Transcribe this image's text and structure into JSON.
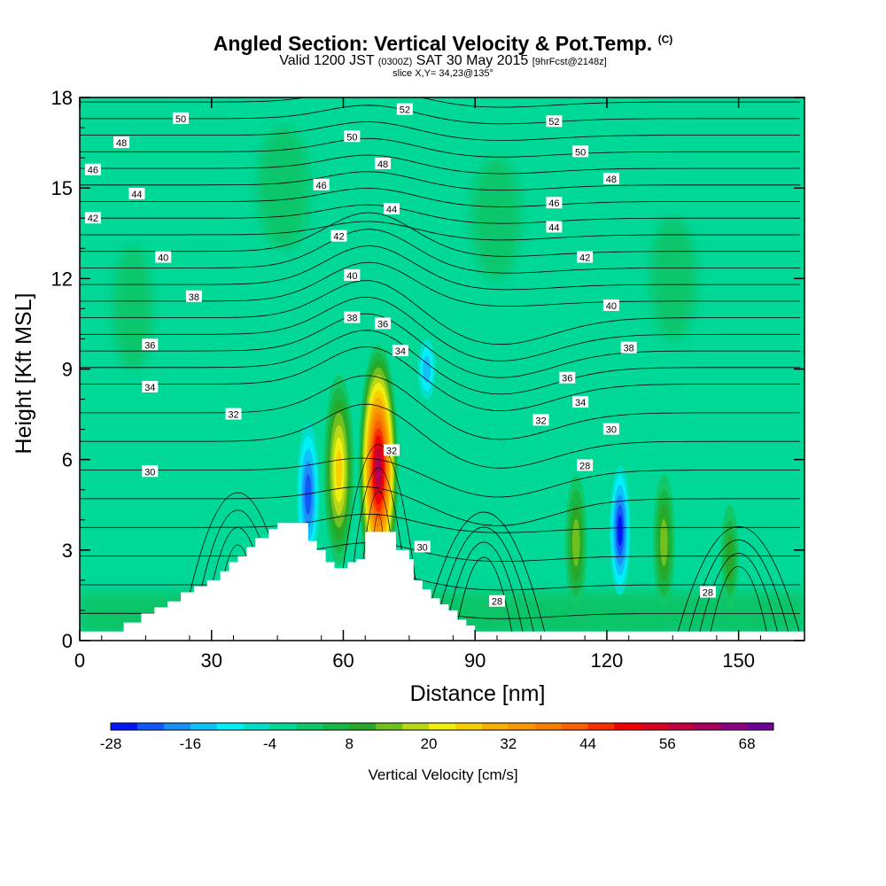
{
  "header": {
    "title": "Angled Section: Vertical Velocity & Pot.Temp.",
    "title_unit": "(C)",
    "subtitle_a": "Valid 1200 JST",
    "subtitle_b": "(0300Z)",
    "subtitle_c": "SAT 30 May 2015",
    "subtitle_d": "[9hrFcst@2148z]",
    "slice": "slice X,Y= 34,23@135°"
  },
  "chart_data": {
    "type": "heatmap",
    "xlabel": "Distance [nm]",
    "ylabel": "Height [Kft MSL]",
    "xlim": [
      0,
      165
    ],
    "ylim": [
      0,
      18
    ],
    "x_ticks": [
      0,
      30,
      60,
      90,
      120,
      150
    ],
    "y_ticks": [
      0,
      3,
      6,
      9,
      12,
      15,
      18
    ],
    "field": "Vertical Velocity",
    "background_value": -4,
    "colorbar": {
      "title": "Vertical Velocity [cm/s]",
      "levels": [
        -28,
        -24,
        -20,
        -16,
        -12,
        -8,
        -4,
        0,
        4,
        8,
        12,
        16,
        20,
        24,
        28,
        32,
        36,
        40,
        44,
        48,
        52,
        56,
        60,
        64,
        68,
        72
      ],
      "tick_values": [
        -28,
        -16,
        -4,
        8,
        20,
        32,
        44,
        56,
        68
      ],
      "colors": [
        "#0018f8",
        "#1058f8",
        "#1890f8",
        "#10c0f8",
        "#00f0f8",
        "#00e0c8",
        "#00d898",
        "#10c868",
        "#18b848",
        "#28a828",
        "#70c020",
        "#b8d818",
        "#f0f010",
        "#f8d000",
        "#f8b000",
        "#f89800",
        "#f88000",
        "#f86000",
        "#f83000",
        "#f00000",
        "#d80020",
        "#c00040",
        "#a80060",
        "#8c0080",
        "#6c0098"
      ]
    },
    "features": [
      {
        "kind": "updraft",
        "x": 68,
        "y_range": [
          1.5,
          9.8
        ],
        "peak": 60
      },
      {
        "kind": "updraft",
        "x": 59,
        "y_range": [
          2.5,
          8.8
        ],
        "peak": 24
      },
      {
        "kind": "downdraft",
        "x": 52,
        "y_range": [
          2.5,
          7.2
        ],
        "peak": -24
      },
      {
        "kind": "downdraft",
        "x": 79,
        "y_range": [
          8.0,
          10.0
        ],
        "peak": -16
      },
      {
        "kind": "downdraft",
        "x": 123,
        "y_range": [
          1.5,
          5.8
        ],
        "peak": -28
      },
      {
        "kind": "updraft",
        "x": 113,
        "y_range": [
          1.0,
          5.5
        ],
        "peak": 12
      },
      {
        "kind": "updraft",
        "x": 133,
        "y_range": [
          1.0,
          5.5
        ],
        "peak": 12
      },
      {
        "kind": "updraft",
        "x": 148,
        "y_range": [
          1.0,
          4.5
        ],
        "peak": 8
      }
    ],
    "terrain": [
      [
        10,
        0.6
      ],
      [
        14,
        0.9
      ],
      [
        17,
        1.1
      ],
      [
        20,
        1.3
      ],
      [
        23,
        1.6
      ],
      [
        26,
        1.8
      ],
      [
        29,
        2.0
      ],
      [
        32,
        2.3
      ],
      [
        34,
        2.6
      ],
      [
        36,
        2.8
      ],
      [
        38,
        3.1
      ],
      [
        40,
        3.4
      ],
      [
        43,
        3.7
      ],
      [
        45,
        3.9
      ],
      [
        51,
        3.9
      ],
      [
        52,
        3.3
      ],
      [
        54,
        3.0
      ],
      [
        56,
        2.6
      ],
      [
        58,
        2.4
      ],
      [
        61,
        2.6
      ],
      [
        63,
        2.7
      ],
      [
        65,
        3.6
      ],
      [
        71,
        3.6
      ],
      [
        72,
        3.0
      ],
      [
        75,
        2.7
      ],
      [
        76,
        2.0
      ],
      [
        78,
        1.7
      ],
      [
        80,
        1.4
      ],
      [
        82,
        1.2
      ],
      [
        84,
        1.0
      ],
      [
        86,
        0.7
      ],
      [
        88,
        0.5
      ],
      [
        90,
        0.3
      ]
    ],
    "theta_contour_labels": [
      {
        "v": 50,
        "x": 23,
        "y": 17.3
      },
      {
        "v": 48,
        "x": 9.5,
        "y": 16.5
      },
      {
        "v": 46,
        "x": 3,
        "y": 15.6
      },
      {
        "v": 44,
        "x": 13,
        "y": 14.8
      },
      {
        "v": 42,
        "x": 3,
        "y": 14.0
      },
      {
        "v": 40,
        "x": 19,
        "y": 12.7
      },
      {
        "v": 38,
        "x": 26,
        "y": 11.4
      },
      {
        "v": 36,
        "x": 16,
        "y": 9.8
      },
      {
        "v": 34,
        "x": 16,
        "y": 8.4
      },
      {
        "v": 32,
        "x": 35,
        "y": 7.5
      },
      {
        "v": 30,
        "x": 16,
        "y": 5.6
      },
      {
        "v": 52,
        "x": 74,
        "y": 17.6
      },
      {
        "v": 50,
        "x": 62,
        "y": 16.7
      },
      {
        "v": 48,
        "x": 69,
        "y": 15.8
      },
      {
        "v": 46,
        "x": 55,
        "y": 15.1
      },
      {
        "v": 44,
        "x": 71,
        "y": 14.3
      },
      {
        "v": 42,
        "x": 59,
        "y": 13.4
      },
      {
        "v": 40,
        "x": 62,
        "y": 12.1
      },
      {
        "v": 38,
        "x": 62,
        "y": 10.7
      },
      {
        "v": 36,
        "x": 69,
        "y": 10.5
      },
      {
        "v": 34,
        "x": 73,
        "y": 9.6
      },
      {
        "v": 32,
        "x": 71,
        "y": 6.3
      },
      {
        "v": 30,
        "x": 78,
        "y": 3.1
      },
      {
        "v": 28,
        "x": 95,
        "y": 1.3
      },
      {
        "v": 52,
        "x": 108,
        "y": 17.2
      },
      {
        "v": 50,
        "x": 114,
        "y": 16.2
      },
      {
        "v": 48,
        "x": 121,
        "y": 15.3
      },
      {
        "v": 46,
        "x": 108,
        "y": 14.5
      },
      {
        "v": 44,
        "x": 108,
        "y": 13.7
      },
      {
        "v": 42,
        "x": 115,
        "y": 12.7
      },
      {
        "v": 40,
        "x": 121,
        "y": 11.1
      },
      {
        "v": 38,
        "x": 125,
        "y": 9.7
      },
      {
        "v": 36,
        "x": 111,
        "y": 8.7
      },
      {
        "v": 34,
        "x": 114,
        "y": 7.9
      },
      {
        "v": 32,
        "x": 105,
        "y": 7.3
      },
      {
        "v": 30,
        "x": 121,
        "y": 7.0
      },
      {
        "v": 28,
        "x": 115,
        "y": 5.8
      },
      {
        "v": 28,
        "x": 143,
        "y": 1.6
      }
    ]
  }
}
